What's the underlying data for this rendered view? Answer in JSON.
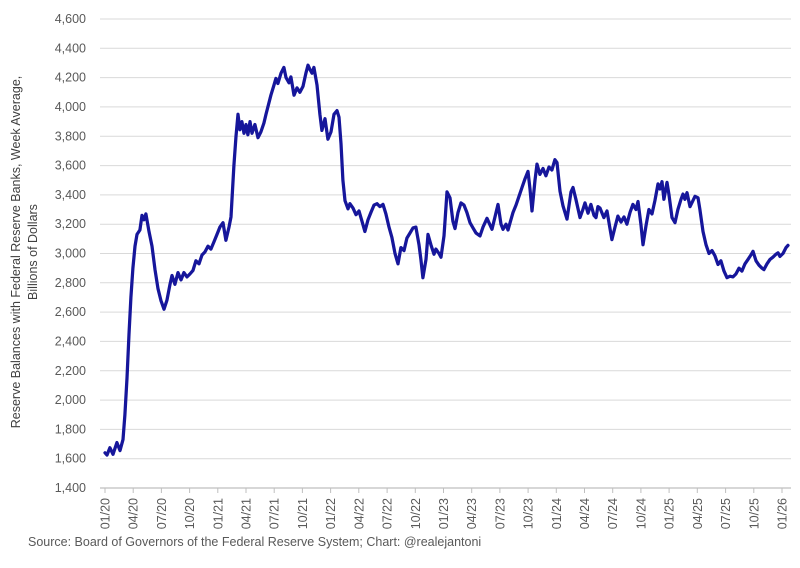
{
  "chart_data": {
    "type": "line",
    "title": "",
    "y_axis_title_line1": "Reserve Balances with Federal Reserve Banks, Week Average,",
    "y_axis_title_line2": "Billions of Dollars",
    "source_note": "Source: Board of Governors of the Federal Reserve System; Chart: @realejantoni",
    "grid": "horizontal",
    "legend_position": "none",
    "ylim": [
      1400,
      4600
    ],
    "xlim": [
      2019.956,
      2026.08
    ],
    "colors": {
      "line": "#16169B",
      "gridline": "#D9D9D9",
      "axis": "#BFBFBF",
      "tick_text": "#595959",
      "title_text": "#404040",
      "background": "#FFFFFF"
    },
    "y_ticks": [
      {
        "v": 1400,
        "label": "1,400"
      },
      {
        "v": 1600,
        "label": "1,600"
      },
      {
        "v": 1800,
        "label": "1,800"
      },
      {
        "v": 2000,
        "label": "2,000"
      },
      {
        "v": 2200,
        "label": "2,200"
      },
      {
        "v": 2400,
        "label": "2,400"
      },
      {
        "v": 2600,
        "label": "2,600"
      },
      {
        "v": 2800,
        "label": "2,800"
      },
      {
        "v": 3000,
        "label": "3,000"
      },
      {
        "v": 3200,
        "label": "3,200"
      },
      {
        "v": 3400,
        "label": "3,400"
      },
      {
        "v": 3600,
        "label": "3,600"
      },
      {
        "v": 3800,
        "label": "3,800"
      },
      {
        "v": 4000,
        "label": "4,000"
      },
      {
        "v": 4200,
        "label": "4,200"
      },
      {
        "v": 4400,
        "label": "4,400"
      },
      {
        "v": 4600,
        "label": "4,600"
      }
    ],
    "x_ticks": [
      {
        "t": 2020.0,
        "label": "01/20"
      },
      {
        "t": 2020.25,
        "label": "04/20"
      },
      {
        "t": 2020.5,
        "label": "07/20"
      },
      {
        "t": 2020.75,
        "label": "10/20"
      },
      {
        "t": 2021.0,
        "label": "01/21"
      },
      {
        "t": 2021.25,
        "label": "04/21"
      },
      {
        "t": 2021.5,
        "label": "07/21"
      },
      {
        "t": 2021.75,
        "label": "10/21"
      },
      {
        "t": 2022.0,
        "label": "01/22"
      },
      {
        "t": 2022.25,
        "label": "04/22"
      },
      {
        "t": 2022.5,
        "label": "07/22"
      },
      {
        "t": 2022.75,
        "label": "10/22"
      },
      {
        "t": 2023.0,
        "label": "01/23"
      },
      {
        "t": 2023.25,
        "label": "04/23"
      },
      {
        "t": 2023.5,
        "label": "07/23"
      },
      {
        "t": 2023.75,
        "label": "10/23"
      },
      {
        "t": 2024.0,
        "label": "01/24"
      },
      {
        "t": 2024.25,
        "label": "04/24"
      },
      {
        "t": 2024.5,
        "label": "07/24"
      },
      {
        "t": 2024.75,
        "label": "10/24"
      },
      {
        "t": 2025.0,
        "label": "01/25"
      },
      {
        "t": 2025.25,
        "label": "04/25"
      },
      {
        "t": 2025.5,
        "label": "07/25"
      },
      {
        "t": 2025.75,
        "label": "10/25"
      },
      {
        "t": 2026.0,
        "label": "01/26"
      }
    ],
    "series": [
      {
        "name": "Reserve Balances with Federal Reserve Banks",
        "color": "#16169B",
        "points": [
          [
            2020.0,
            1640
          ],
          [
            2020.018,
            1625
          ],
          [
            2020.044,
            1675
          ],
          [
            2020.071,
            1630
          ],
          [
            2020.106,
            1710
          ],
          [
            2020.133,
            1655
          ],
          [
            2020.16,
            1730
          ],
          [
            2020.177,
            1900
          ],
          [
            2020.195,
            2150
          ],
          [
            2020.213,
            2450
          ],
          [
            2020.23,
            2700
          ],
          [
            2020.248,
            2900
          ],
          [
            2020.266,
            3050
          ],
          [
            2020.284,
            3130
          ],
          [
            2020.31,
            3160
          ],
          [
            2020.328,
            3260
          ],
          [
            2020.346,
            3230
          ],
          [
            2020.363,
            3270
          ],
          [
            2020.39,
            3150
          ],
          [
            2020.417,
            3050
          ],
          [
            2020.443,
            2890
          ],
          [
            2020.47,
            2760
          ],
          [
            2020.496,
            2680
          ],
          [
            2020.523,
            2620
          ],
          [
            2020.549,
            2680
          ],
          [
            2020.576,
            2790
          ],
          [
            2020.594,
            2850
          ],
          [
            2020.62,
            2790
          ],
          [
            2020.647,
            2870
          ],
          [
            2020.674,
            2820
          ],
          [
            2020.7,
            2870
          ],
          [
            2020.727,
            2840
          ],
          [
            2020.753,
            2860
          ],
          [
            2020.78,
            2885
          ],
          [
            2020.806,
            2950
          ],
          [
            2020.833,
            2930
          ],
          [
            2020.86,
            2990
          ],
          [
            2020.886,
            3010
          ],
          [
            2020.913,
            3050
          ],
          [
            2020.939,
            3030
          ],
          [
            2020.966,
            3080
          ],
          [
            2020.993,
            3130
          ],
          [
            2021.019,
            3180
          ],
          [
            2021.046,
            3210
          ],
          [
            2021.072,
            3090
          ],
          [
            2021.099,
            3180
          ],
          [
            2021.117,
            3250
          ],
          [
            2021.143,
            3600
          ],
          [
            2021.161,
            3800
          ],
          [
            2021.179,
            3950
          ],
          [
            2021.196,
            3845
          ],
          [
            2021.214,
            3900
          ],
          [
            2021.232,
            3820
          ],
          [
            2021.25,
            3880
          ],
          [
            2021.267,
            3810
          ],
          [
            2021.285,
            3900
          ],
          [
            2021.303,
            3820
          ],
          [
            2021.329,
            3880
          ],
          [
            2021.356,
            3790
          ],
          [
            2021.382,
            3830
          ],
          [
            2021.409,
            3890
          ],
          [
            2021.427,
            3950
          ],
          [
            2021.444,
            4000
          ],
          [
            2021.471,
            4080
          ],
          [
            2021.498,
            4150
          ],
          [
            2021.515,
            4195
          ],
          [
            2021.533,
            4160
          ],
          [
            2021.56,
            4230
          ],
          [
            2021.586,
            4270
          ],
          [
            2021.604,
            4200
          ],
          [
            2021.631,
            4165
          ],
          [
            2021.648,
            4205
          ],
          [
            2021.675,
            4080
          ],
          [
            2021.702,
            4130
          ],
          [
            2021.728,
            4100
          ],
          [
            2021.755,
            4140
          ],
          [
            2021.781,
            4230
          ],
          [
            2021.799,
            4285
          ],
          [
            2021.817,
            4255
          ],
          [
            2021.835,
            4230
          ],
          [
            2021.852,
            4270
          ],
          [
            2021.879,
            4150
          ],
          [
            2021.905,
            3950
          ],
          [
            2021.923,
            3840
          ],
          [
            2021.95,
            3920
          ],
          [
            2021.976,
            3780
          ],
          [
            2022.003,
            3830
          ],
          [
            2022.03,
            3950
          ],
          [
            2022.056,
            3975
          ],
          [
            2022.074,
            3930
          ],
          [
            2022.092,
            3750
          ],
          [
            2022.109,
            3500
          ],
          [
            2022.127,
            3360
          ],
          [
            2022.154,
            3305
          ],
          [
            2022.171,
            3340
          ],
          [
            2022.198,
            3310
          ],
          [
            2022.225,
            3265
          ],
          [
            2022.251,
            3290
          ],
          [
            2022.278,
            3220
          ],
          [
            2022.304,
            3150
          ],
          [
            2022.331,
            3230
          ],
          [
            2022.357,
            3280
          ],
          [
            2022.384,
            3330
          ],
          [
            2022.411,
            3340
          ],
          [
            2022.437,
            3320
          ],
          [
            2022.464,
            3335
          ],
          [
            2022.49,
            3270
          ],
          [
            2022.517,
            3180
          ],
          [
            2022.543,
            3110
          ],
          [
            2022.57,
            3000
          ],
          [
            2022.597,
            2930
          ],
          [
            2022.623,
            3040
          ],
          [
            2022.65,
            3020
          ],
          [
            2022.676,
            3105
          ],
          [
            2022.703,
            3140
          ],
          [
            2022.73,
            3175
          ],
          [
            2022.756,
            3180
          ],
          [
            2022.783,
            3060
          ],
          [
            2022.8,
            2960
          ],
          [
            2022.818,
            2835
          ],
          [
            2022.845,
            2960
          ],
          [
            2022.863,
            3130
          ],
          [
            2022.889,
            3060
          ],
          [
            2022.916,
            2995
          ],
          [
            2022.933,
            3030
          ],
          [
            2022.96,
            3000
          ],
          [
            2022.978,
            2975
          ],
          [
            2023.005,
            3120
          ],
          [
            2023.031,
            3420
          ],
          [
            2023.058,
            3380
          ],
          [
            2023.084,
            3220
          ],
          [
            2023.102,
            3170
          ],
          [
            2023.129,
            3280
          ],
          [
            2023.155,
            3345
          ],
          [
            2023.182,
            3330
          ],
          [
            2023.208,
            3280
          ],
          [
            2023.235,
            3210
          ],
          [
            2023.262,
            3175
          ],
          [
            2023.288,
            3140
          ],
          [
            2023.324,
            3120
          ],
          [
            2023.35,
            3180
          ],
          [
            2023.386,
            3240
          ],
          [
            2023.412,
            3195
          ],
          [
            2023.43,
            3165
          ],
          [
            2023.457,
            3250
          ],
          [
            2023.483,
            3335
          ],
          [
            2023.51,
            3200
          ],
          [
            2023.528,
            3165
          ],
          [
            2023.554,
            3200
          ],
          [
            2023.572,
            3160
          ],
          [
            2023.598,
            3230
          ],
          [
            2023.616,
            3280
          ],
          [
            2023.643,
            3330
          ],
          [
            2023.669,
            3390
          ],
          [
            2023.696,
            3450
          ],
          [
            2023.723,
            3510
          ],
          [
            2023.749,
            3560
          ],
          [
            2023.767,
            3440
          ],
          [
            2023.785,
            3290
          ],
          [
            2023.811,
            3500
          ],
          [
            2023.829,
            3610
          ],
          [
            2023.855,
            3540
          ],
          [
            2023.882,
            3580
          ],
          [
            2023.908,
            3530
          ],
          [
            2023.935,
            3590
          ],
          [
            2023.961,
            3570
          ],
          [
            2023.988,
            3640
          ],
          [
            2024.006,
            3620
          ],
          [
            2024.033,
            3425
          ],
          [
            2024.059,
            3325
          ],
          [
            2024.095,
            3235
          ],
          [
            2024.13,
            3420
          ],
          [
            2024.148,
            3450
          ],
          [
            2024.174,
            3370
          ],
          [
            2024.21,
            3245
          ],
          [
            2024.236,
            3300
          ],
          [
            2024.254,
            3345
          ],
          [
            2024.281,
            3275
          ],
          [
            2024.307,
            3335
          ],
          [
            2024.334,
            3260
          ],
          [
            2024.352,
            3245
          ],
          [
            2024.369,
            3320
          ],
          [
            2024.387,
            3310
          ],
          [
            2024.422,
            3245
          ],
          [
            2024.449,
            3290
          ],
          [
            2024.476,
            3170
          ],
          [
            2024.493,
            3095
          ],
          [
            2024.52,
            3180
          ],
          [
            2024.546,
            3255
          ],
          [
            2024.573,
            3215
          ],
          [
            2024.6,
            3250
          ],
          [
            2024.626,
            3200
          ],
          [
            2024.653,
            3280
          ],
          [
            2024.679,
            3335
          ],
          [
            2024.706,
            3300
          ],
          [
            2024.724,
            3355
          ],
          [
            2024.75,
            3200
          ],
          [
            2024.768,
            3060
          ],
          [
            2024.795,
            3190
          ],
          [
            2024.821,
            3300
          ],
          [
            2024.848,
            3270
          ],
          [
            2024.874,
            3360
          ],
          [
            2024.901,
            3475
          ],
          [
            2024.919,
            3440
          ],
          [
            2024.937,
            3490
          ],
          [
            2024.954,
            3370
          ],
          [
            2024.981,
            3485
          ],
          [
            2024.999,
            3400
          ],
          [
            2025.025,
            3245
          ],
          [
            2025.052,
            3210
          ],
          [
            2025.078,
            3300
          ],
          [
            2025.105,
            3370
          ],
          [
            2025.123,
            3405
          ],
          [
            2025.14,
            3370
          ],
          [
            2025.158,
            3415
          ],
          [
            2025.185,
            3320
          ],
          [
            2025.211,
            3360
          ],
          [
            2025.229,
            3390
          ],
          [
            2025.256,
            3380
          ],
          [
            2025.273,
            3300
          ],
          [
            2025.3,
            3150
          ],
          [
            2025.327,
            3060
          ],
          [
            2025.353,
            3000
          ],
          [
            2025.38,
            3020
          ],
          [
            2025.406,
            2985
          ],
          [
            2025.433,
            2925
          ],
          [
            2025.459,
            2950
          ],
          [
            2025.486,
            2880
          ],
          [
            2025.513,
            2835
          ],
          [
            2025.539,
            2845
          ],
          [
            2025.566,
            2840
          ],
          [
            2025.592,
            2860
          ],
          [
            2025.619,
            2900
          ],
          [
            2025.645,
            2880
          ],
          [
            2025.672,
            2930
          ],
          [
            2025.699,
            2960
          ],
          [
            2025.725,
            2990
          ],
          [
            2025.743,
            3015
          ],
          [
            2025.77,
            2950
          ],
          [
            2025.796,
            2920
          ],
          [
            2025.823,
            2900
          ],
          [
            2025.84,
            2890
          ],
          [
            2025.867,
            2930
          ],
          [
            2025.894,
            2960
          ],
          [
            2025.92,
            2975
          ],
          [
            2025.947,
            2995
          ],
          [
            2025.965,
            3005
          ],
          [
            2025.982,
            2980
          ],
          [
            2026.009,
            3000
          ],
          [
            2026.036,
            3040
          ],
          [
            2026.053,
            3055
          ]
        ]
      }
    ]
  }
}
